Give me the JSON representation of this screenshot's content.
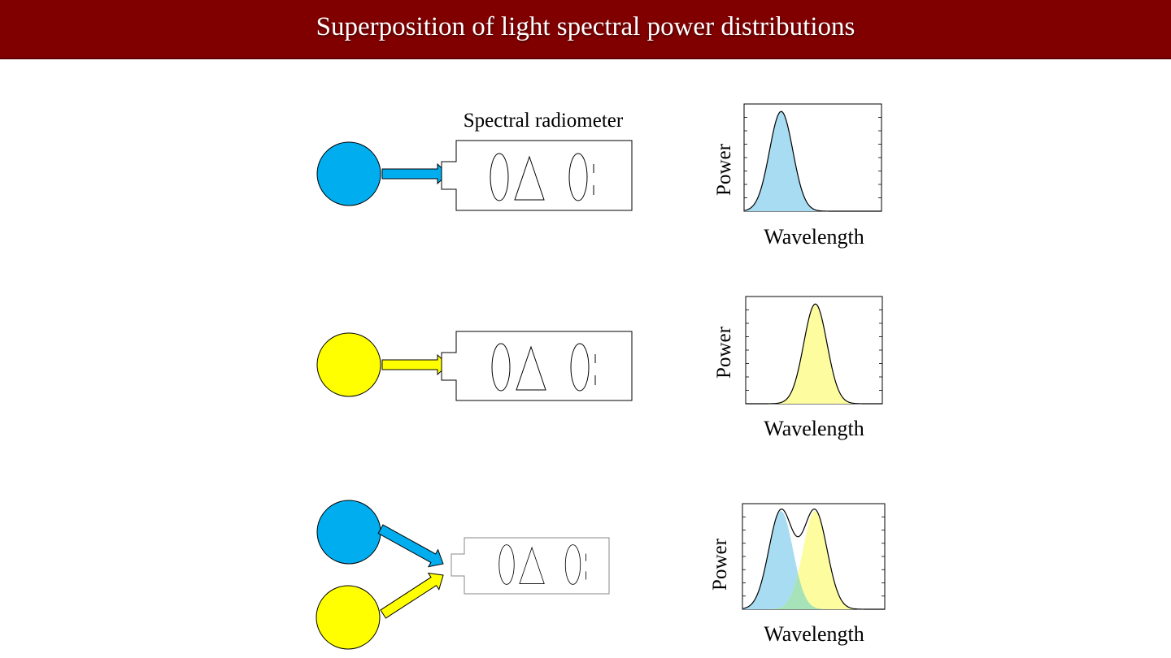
{
  "title": "Superposition of light spectral power distributions",
  "diagram": {
    "instrument_label": "Spectral radiometer",
    "colors": {
      "blue": "#00aeef",
      "yellow": "#ffff00",
      "blue_fill": "#a8dcf2",
      "yellow_fill": "#fdfda0",
      "overlap_fill": "#a6e3b8",
      "header": "#800000"
    },
    "panels": [
      {
        "id": "blue",
        "sources": [
          "blue"
        ],
        "ylabel": "Power",
        "xlabel": "Wavelength"
      },
      {
        "id": "yellow",
        "sources": [
          "yellow"
        ],
        "ylabel": "Power",
        "xlabel": "Wavelength"
      },
      {
        "id": "combined",
        "sources": [
          "blue",
          "yellow"
        ],
        "ylabel": "Power",
        "xlabel": "Wavelength"
      }
    ]
  },
  "chart_data": [
    {
      "type": "area",
      "series": [
        {
          "name": "",
          "peak_position": 0.27,
          "width": 0.085,
          "height": 0.93,
          "color": "blue"
        }
      ],
      "xlabel": "Wavelength",
      "ylabel": "Power"
    },
    {
      "type": "area",
      "series": [
        {
          "name": "",
          "peak_position": 0.51,
          "width": 0.085,
          "height": 0.93,
          "color": "yellow"
        }
      ],
      "xlabel": "Wavelength",
      "ylabel": "Power"
    },
    {
      "type": "area",
      "series": [
        {
          "name": "",
          "peak_position": 0.27,
          "width": 0.085,
          "height": 0.93,
          "color": "blue"
        },
        {
          "name": "",
          "peak_position": 0.51,
          "width": 0.085,
          "height": 0.93,
          "color": "yellow"
        }
      ],
      "stacked_sum": true,
      "xlabel": "Wavelength",
      "ylabel": "Power"
    }
  ]
}
